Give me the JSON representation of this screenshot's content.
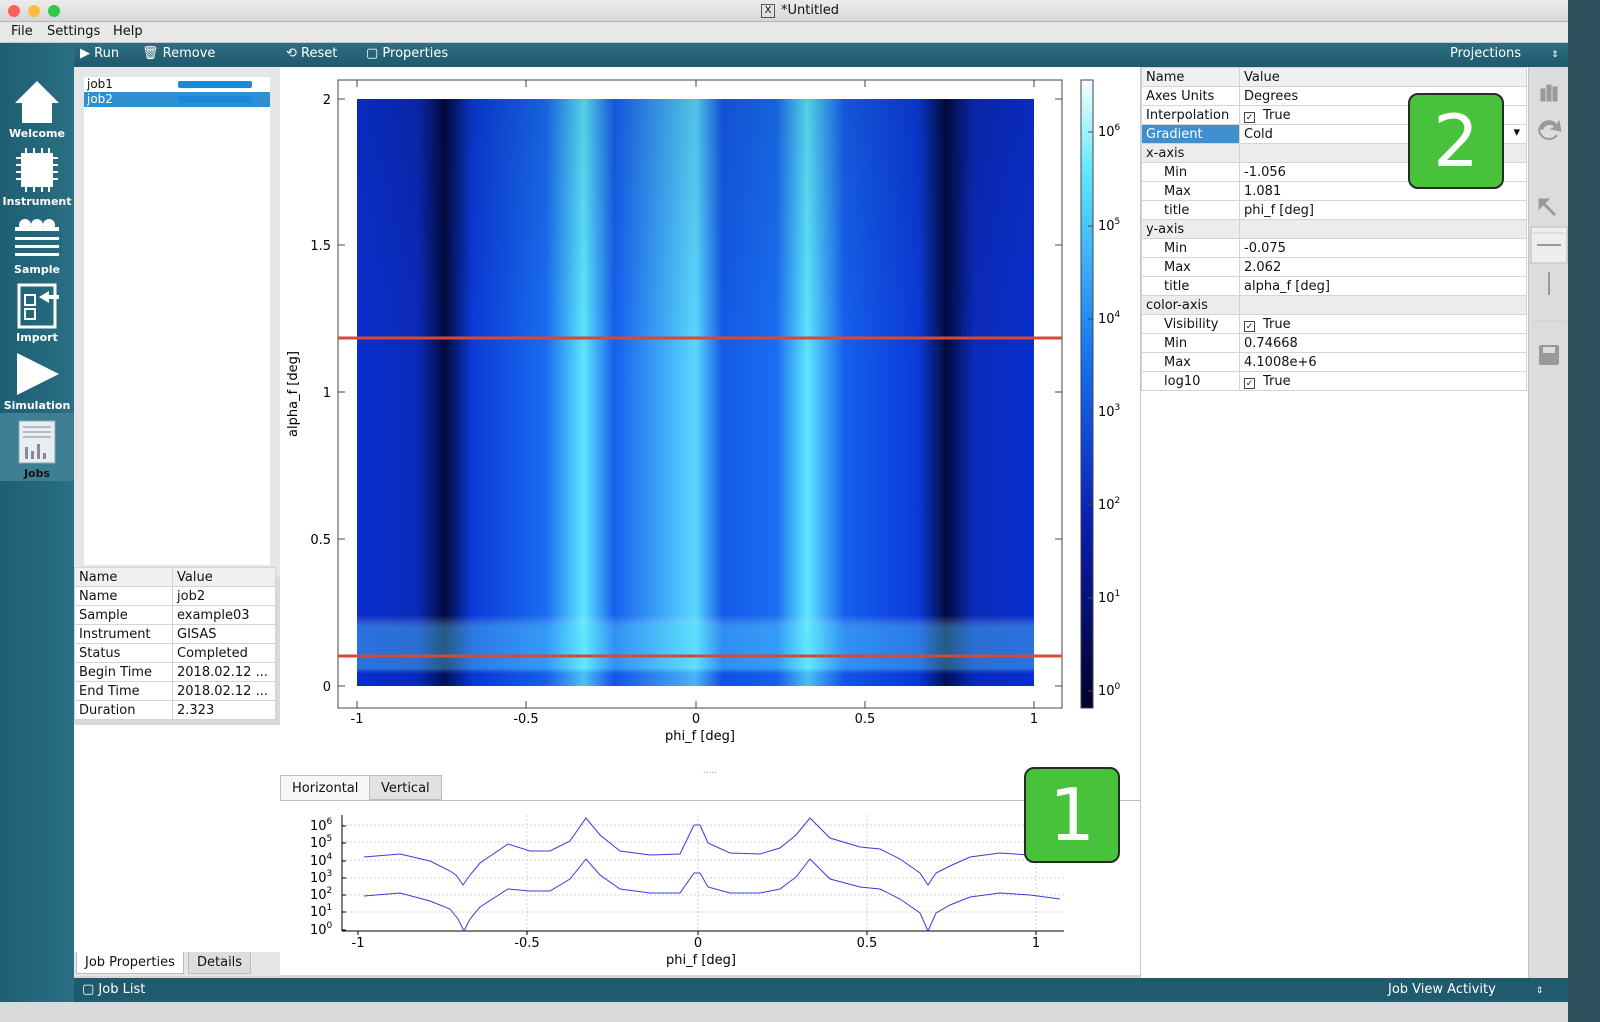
{
  "window": {
    "title": "*Untitled"
  },
  "menu": [
    "File",
    "Settings",
    "Help"
  ],
  "sidebar": [
    {
      "label": "Welcome",
      "icon": "home-icon"
    },
    {
      "label": "Instrument",
      "icon": "chip-icon"
    },
    {
      "label": "Sample",
      "icon": "layers-icon"
    },
    {
      "label": "Import",
      "icon": "import-icon"
    },
    {
      "label": "Simulation",
      "icon": "play-icon"
    },
    {
      "label": "Jobs",
      "icon": "jobs-icon"
    }
  ],
  "job_toolbar": {
    "run": "Run",
    "remove": "Remove"
  },
  "plot_toolbar": {
    "reset": "Reset",
    "properties": "Properties",
    "projections": "Projections"
  },
  "jobs": [
    {
      "name": "job1",
      "progress": 100,
      "selected": false
    },
    {
      "name": "job2",
      "progress": 100,
      "selected": true
    }
  ],
  "job_props": {
    "header": [
      "Name",
      "Value"
    ],
    "rows": [
      [
        "Name",
        "job2"
      ],
      [
        "Sample",
        "example03"
      ],
      [
        "Instrument",
        "GISAS"
      ],
      [
        "Status",
        "Completed"
      ],
      [
        "Begin Time",
        "2018.02.12 ..."
      ],
      [
        "End Time",
        "2018.02.12 ..."
      ],
      [
        "Duration",
        "2.323"
      ]
    ]
  },
  "bottom_tabs": [
    "Job Properties",
    "Details"
  ],
  "status": {
    "job_list": "Job List",
    "activity": "Job View Activity"
  },
  "plot": {
    "xlabel": "phi_f [deg]",
    "ylabel": "alpha_f [deg]",
    "xticks": [
      "-1",
      "-0.5",
      "0",
      "0.5",
      "1"
    ],
    "yticks": [
      "0",
      "0.5",
      "1",
      "1.5",
      "2"
    ],
    "colorbar_ticks": [
      "10",
      "10",
      "10",
      "10",
      "10",
      "10",
      "10"
    ],
    "colorbar_exps": [
      "0",
      "1",
      "2",
      "3",
      "4",
      "5",
      "6"
    ]
  },
  "proj": {
    "tabs": [
      "Horizontal",
      "Vertical"
    ],
    "xlabel": "phi_f [deg]",
    "xticks": [
      "-1",
      "-0.5",
      "0",
      "0.5",
      "1"
    ],
    "yticks": [
      "10",
      "10",
      "10",
      "10",
      "10",
      "10",
      "10"
    ],
    "yexps": [
      "6",
      "5",
      "4",
      "3",
      "2",
      "1",
      "0"
    ]
  },
  "props": {
    "header": [
      "Name",
      "Value"
    ],
    "rows": [
      {
        "name": "Axes Units",
        "value": "Degrees",
        "type": "plain"
      },
      {
        "name": "Interpolation",
        "value": "True",
        "type": "check"
      },
      {
        "name": "Gradient",
        "value": "Cold",
        "type": "select"
      },
      {
        "name": "x-axis",
        "value": "",
        "type": "group"
      },
      {
        "name": "Min",
        "value": "-1.056",
        "type": "ind"
      },
      {
        "name": "Max",
        "value": "1.081",
        "type": "ind"
      },
      {
        "name": "title",
        "value": "phi_f [deg]",
        "type": "ind"
      },
      {
        "name": "y-axis",
        "value": "",
        "type": "group"
      },
      {
        "name": "Min",
        "value": "-0.075",
        "type": "ind"
      },
      {
        "name": "Max",
        "value": "2.062",
        "type": "ind"
      },
      {
        "name": "title",
        "value": "alpha_f [deg]",
        "type": "ind"
      },
      {
        "name": "color-axis",
        "value": "",
        "type": "group"
      },
      {
        "name": "Visibility",
        "value": "True",
        "type": "indcheck"
      },
      {
        "name": "Min",
        "value": "0.74668",
        "type": "ind"
      },
      {
        "name": "Max",
        "value": "4.1008e+6",
        "type": "ind"
      },
      {
        "name": "log10",
        "value": "True",
        "type": "indcheck"
      }
    ]
  },
  "badges": [
    "1",
    "2"
  ],
  "colors": {
    "accent": "#2f8fd0",
    "toolbar": "#1f5a6d",
    "badge": "#48c23a"
  }
}
